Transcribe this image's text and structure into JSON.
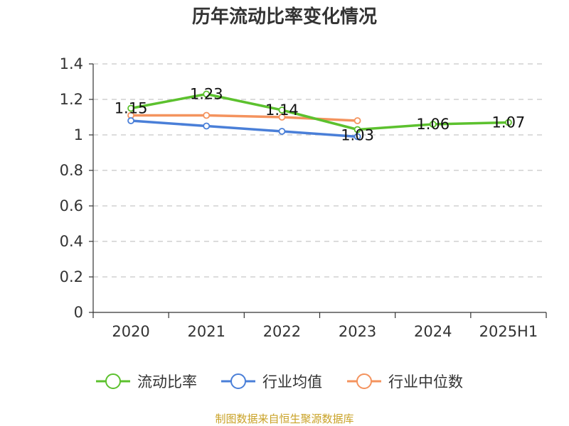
{
  "chart_data": {
    "type": "line",
    "title": "历年流动比率变化情况",
    "categories": [
      "2020",
      "2021",
      "2022",
      "2023",
      "2024",
      "2025H1"
    ],
    "ylim": [
      0,
      1.4
    ],
    "yticks": [
      "0",
      "0.2",
      "0.4",
      "0.6",
      "0.8",
      "1",
      "1.2",
      "1.4"
    ],
    "grid": true,
    "legend_position": "bottom",
    "series": [
      {
        "name": "流动比率",
        "color": "#5cc12e",
        "values": [
          1.15,
          1.23,
          1.14,
          1.03,
          1.06,
          1.07
        ],
        "labels": [
          "1.15",
          "1.23",
          "1.14",
          "1.03",
          "1.06",
          "1.07"
        ]
      },
      {
        "name": "行业均值",
        "color": "#4a7fd8",
        "values": [
          1.08,
          1.05,
          1.02,
          0.99,
          null,
          null
        ]
      },
      {
        "name": "行业中位数",
        "color": "#f4935e",
        "values": [
          1.11,
          1.11,
          1.1,
          1.08,
          null,
          null
        ]
      }
    ],
    "source": "制图数据来自恒生聚源数据库"
  }
}
